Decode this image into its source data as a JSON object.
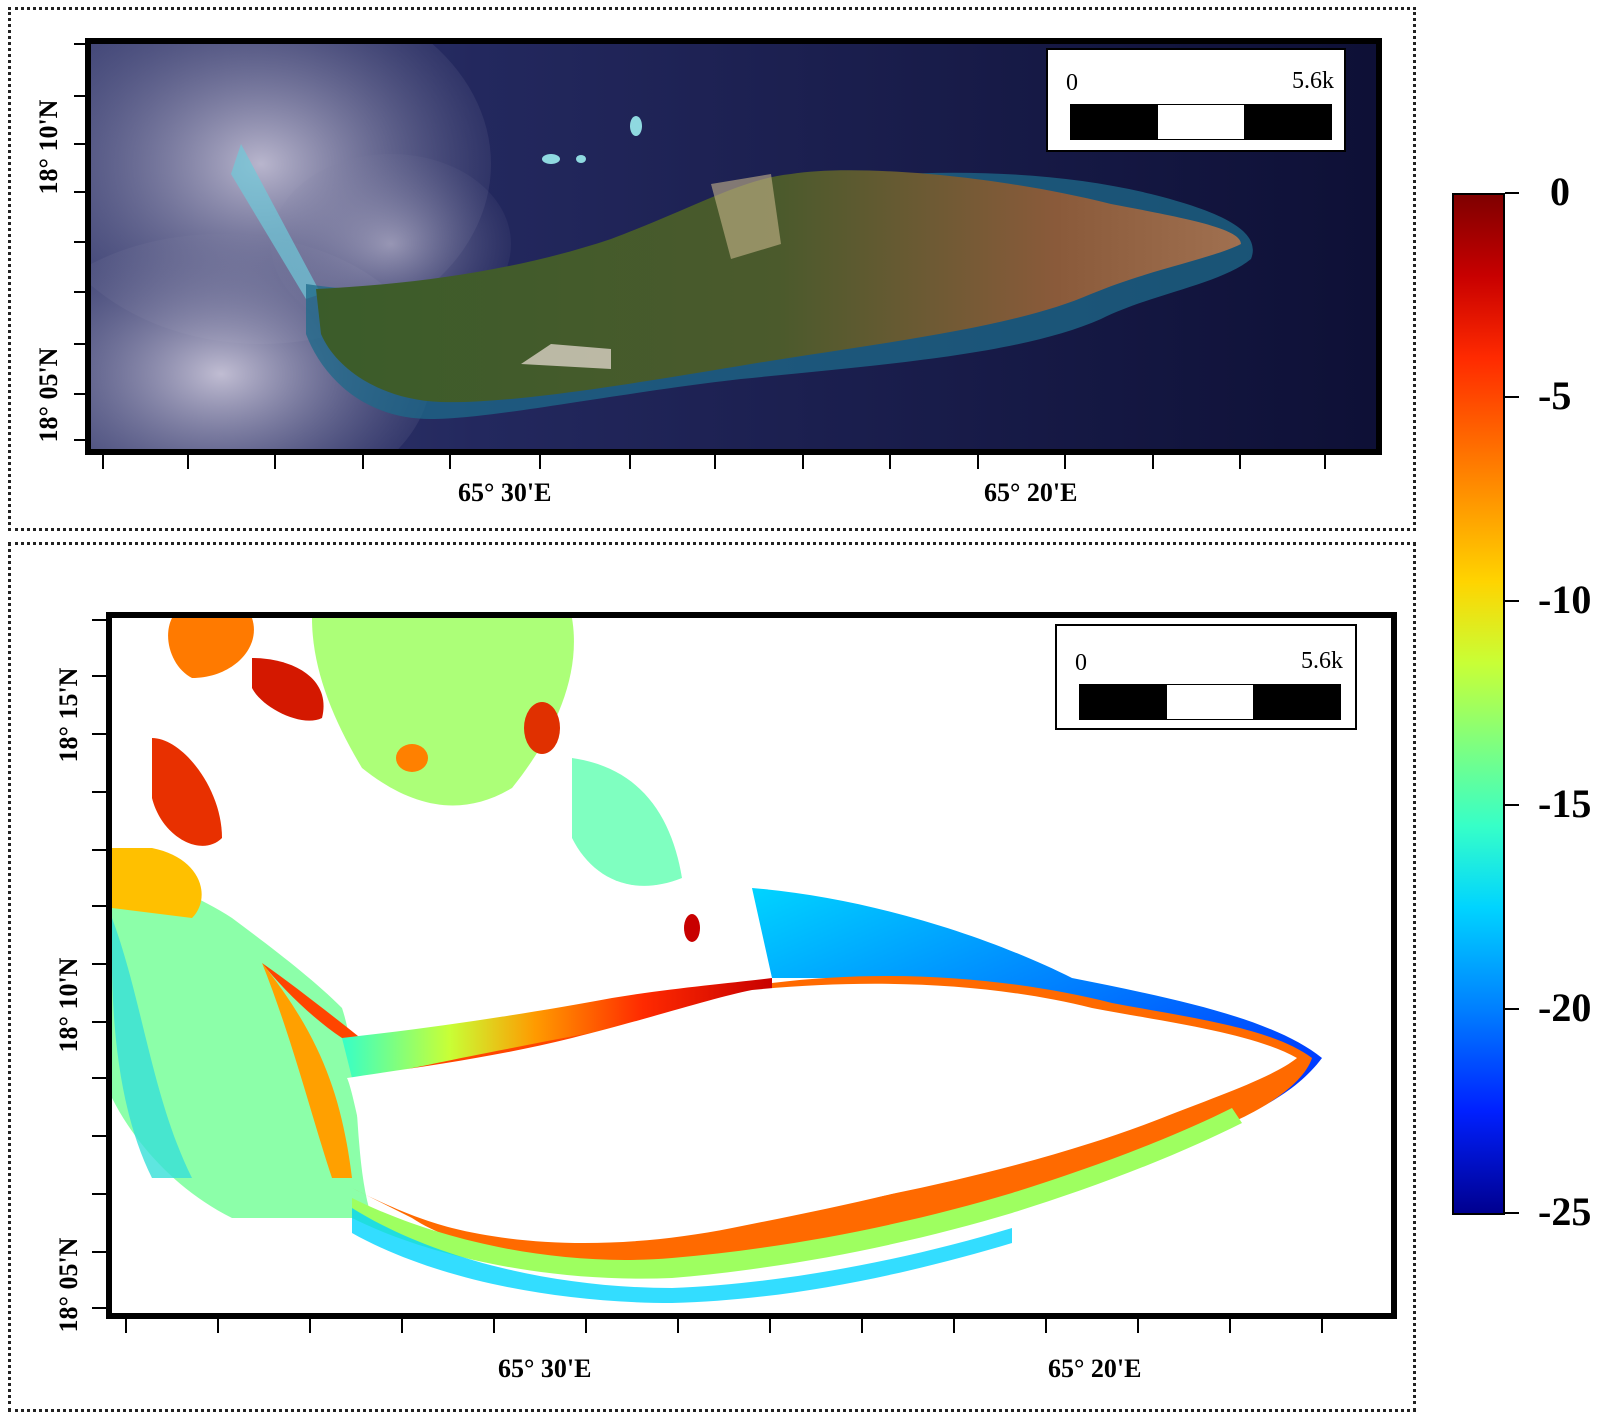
{
  "top_panel": {
    "scale_bar": {
      "start": "0",
      "end": "5.6k"
    },
    "lat_labels": [
      "18° 10'N",
      "18° 05'N"
    ],
    "lon_labels": [
      "65° 30'E",
      "65° 20'E"
    ]
  },
  "bottom_panel": {
    "scale_bar": {
      "start": "0",
      "end": "5.6k"
    },
    "lat_labels": [
      "18° 15'N",
      "18° 10'N",
      "18° 05'N"
    ],
    "lon_labels": [
      "65° 30'E",
      "65° 20'E"
    ]
  },
  "colorbar": {
    "labels": [
      "0",
      "-5",
      "-10",
      "-15",
      "-20",
      "-25"
    ],
    "range": [
      -25,
      0
    ],
    "colors": [
      "#7f0000",
      "#ff2a00",
      "#ffd400",
      "#7fff7f",
      "#00d4ff",
      "#0020ff",
      "#00008f"
    ]
  }
}
